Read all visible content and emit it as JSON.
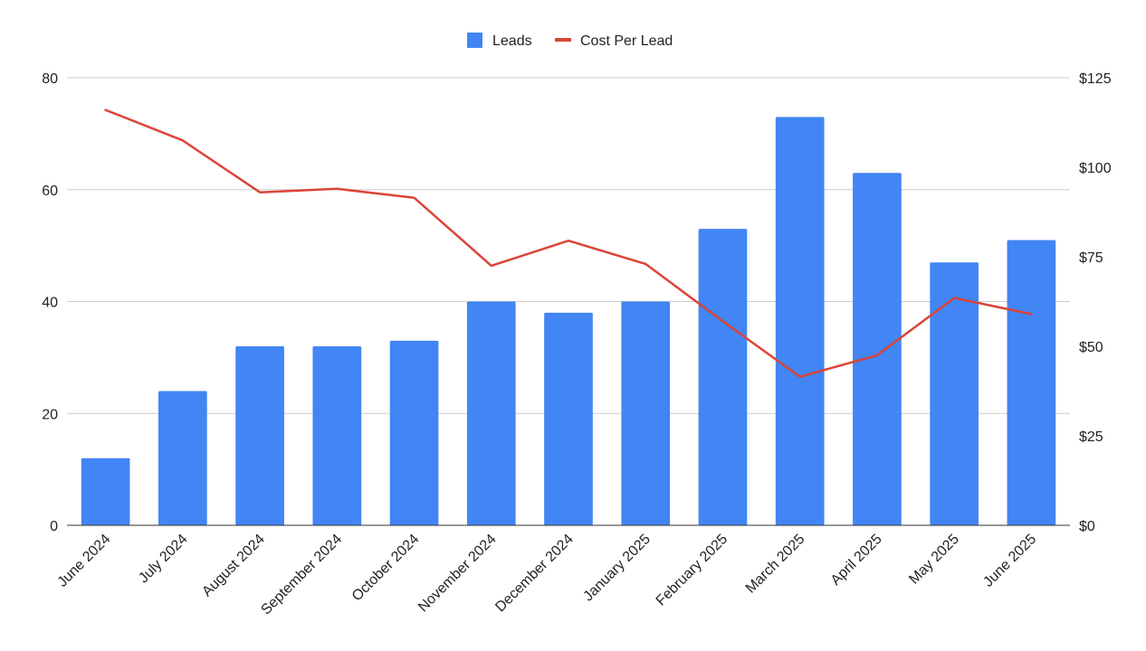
{
  "chart_data": {
    "type": "bar",
    "categories": [
      "June 2024",
      "July 2024",
      "August 2024",
      "September 2024",
      "October 2024",
      "November 2024",
      "December 2024",
      "January 2025",
      "February 2025",
      "March 2025",
      "April 2025",
      "May 2025",
      "June 2025"
    ],
    "series": [
      {
        "name": "Leads",
        "type": "bar",
        "axis": "left",
        "color": "#4285F4",
        "values": [
          12,
          24,
          32,
          32,
          33,
          40,
          38,
          40,
          53,
          73,
          63,
          47,
          51
        ]
      },
      {
        "name": "Cost Per Lead",
        "type": "line",
        "axis": "right",
        "color": "#DB4437",
        "values": [
          116,
          107.5,
          93,
          94,
          91.5,
          72.5,
          79.5,
          73,
          57,
          41.5,
          47.5,
          63.5,
          59
        ]
      }
    ],
    "left_axis": {
      "ylim": [
        0,
        80
      ],
      "ticks": [
        "0",
        "20",
        "40",
        "60",
        "80"
      ]
    },
    "right_axis": {
      "ylim": [
        0,
        125
      ],
      "ticks": [
        "$0",
        "$25",
        "$50",
        "$75",
        "$100",
        "$125"
      ]
    },
    "legend_position": "top-center",
    "grid": true
  }
}
